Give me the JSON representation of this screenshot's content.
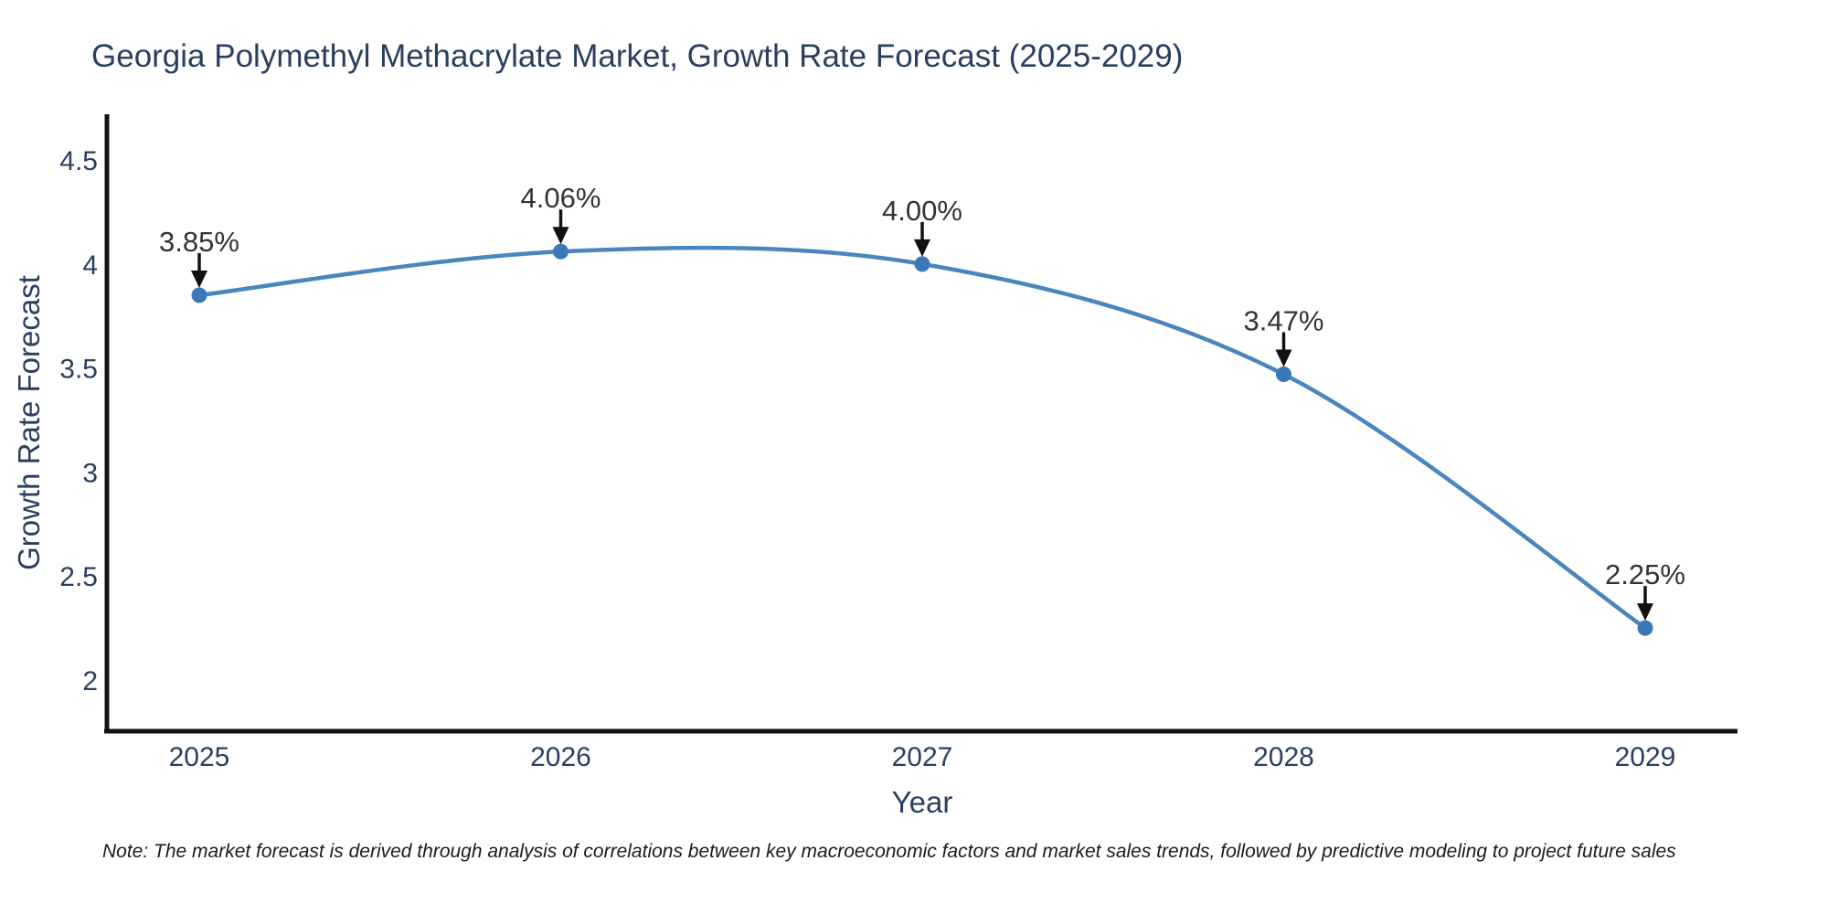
{
  "title": "Georgia Polymethyl Methacrylate Market, Growth Rate Forecast (2025-2029)",
  "note": "Note: The market forecast is derived through analysis of correlations between key macroeconomic factors and market sales trends, followed by predictive modeling to project future sales",
  "chart_data": {
    "type": "line",
    "line_shape": "spline",
    "title": "Georgia Polymethyl Methacrylate Market, Growth Rate Forecast (2025-2029)",
    "xlabel": "Year",
    "ylabel": "Growth Rate Forecast",
    "categories": [
      "2025",
      "2026",
      "2027",
      "2028",
      "2029"
    ],
    "values": [
      3.85,
      4.06,
      4.0,
      3.47,
      2.25
    ],
    "point_labels": [
      "3.85%",
      "4.06%",
      "4.00%",
      "3.47%",
      "2.25%"
    ],
    "yticks": [
      4.5,
      4,
      3.5,
      3,
      2.5,
      2
    ],
    "ytick_labels": [
      "4.5",
      "4",
      "3.5",
      "3",
      "2.5",
      "2"
    ],
    "ylim": [
      1.754,
      4.72
    ],
    "grid": false,
    "legend": "none",
    "colors": {
      "line": "#4a86bd",
      "marker": "#3a79b8",
      "axis_line": "#111111",
      "axis_text": "#2a3f5f",
      "annotation_text": "#333333",
      "arrow": "#111111",
      "background": "#ffffff"
    }
  }
}
